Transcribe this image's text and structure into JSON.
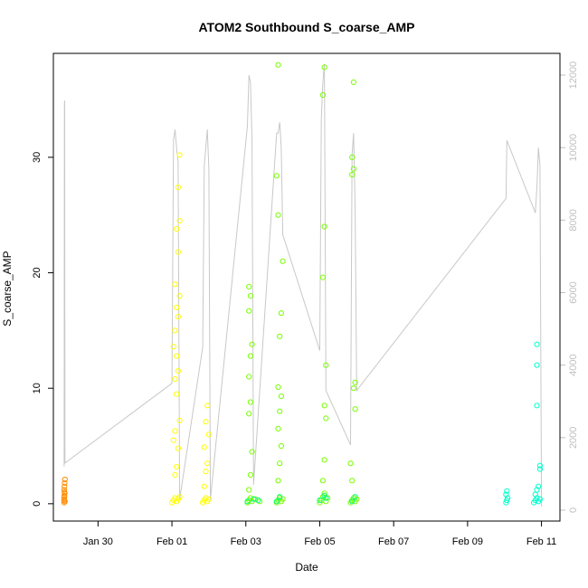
{
  "chart_data": {
    "type": "scatter",
    "title": "ATOM2 Southbound S_coarse_AMP",
    "xlabel": "Date",
    "ylabel": "S_coarse_AMP",
    "xlim": [
      "2024-01-28T19:00",
      "2024-02-11T12:00"
    ],
    "ylim": [
      -1.5,
      39
    ],
    "ylim_right": [
      -300,
      12600
    ],
    "x_ticks": [
      {
        "label": "Jan 30",
        "at": "2024-01-30"
      },
      {
        "label": "Feb 01",
        "at": "2024-02-01"
      },
      {
        "label": "Feb 03",
        "at": "2024-02-03"
      },
      {
        "label": "Feb 05",
        "at": "2024-02-05"
      },
      {
        "label": "Feb 07",
        "at": "2024-02-07"
      },
      {
        "label": "Feb 09",
        "at": "2024-02-09"
      },
      {
        "label": "Feb 11",
        "at": "2024-02-11"
      }
    ],
    "y_ticks": [
      0,
      10,
      20,
      30
    ],
    "y_ticks_right": [
      0,
      2000,
      4000,
      6000,
      8000,
      10000,
      12000
    ],
    "grid": false,
    "legend": "none",
    "series": [
      {
        "color": "#ff8c00",
        "points": [
          [
            "2024-01-29T02:00",
            0.1
          ],
          [
            "2024-01-29T02:00",
            0.3
          ],
          [
            "2024-01-29T02:10",
            0.6
          ],
          [
            "2024-01-29T02:20",
            0.9
          ],
          [
            "2024-01-29T02:00",
            1.2
          ],
          [
            "2024-01-29T02:10",
            1.5
          ],
          [
            "2024-01-29T02:20",
            1.8
          ],
          [
            "2024-01-29T02:30",
            2.1
          ],
          [
            "2024-01-29T02:00",
            0.4
          ],
          [
            "2024-01-29T02:30",
            0.2
          ],
          [
            "2024-01-29T02:15",
            1.0
          ],
          [
            "2024-01-29T02:05",
            0.7
          ]
        ]
      },
      {
        "color": "#ffff00",
        "points": [
          [
            "2024-02-01T00:00",
            0.1
          ],
          [
            "2024-02-01T01:00",
            0.3
          ],
          [
            "2024-02-01T02:00",
            0.5
          ],
          [
            "2024-02-01T03:00",
            0.2
          ],
          [
            "2024-02-01T04:00",
            0.4
          ],
          [
            "2024-02-01T05:00",
            0.6
          ],
          [
            "2024-02-01T02:00",
            2.5
          ],
          [
            "2024-02-01T03:00",
            3.2
          ],
          [
            "2024-02-01T04:00",
            4.8
          ],
          [
            "2024-02-01T01:00",
            5.5
          ],
          [
            "2024-02-01T02:00",
            6.3
          ],
          [
            "2024-02-01T05:00",
            7.2
          ],
          [
            "2024-02-01T03:00",
            9.5
          ],
          [
            "2024-02-01T02:00",
            10.8
          ],
          [
            "2024-02-01T04:00",
            11.5
          ],
          [
            "2024-02-01T03:00",
            12.8
          ],
          [
            "2024-02-01T01:00",
            13.6
          ],
          [
            "2024-02-01T02:00",
            15.0
          ],
          [
            "2024-02-01T04:00",
            16.2
          ],
          [
            "2024-02-01T03:00",
            17.0
          ],
          [
            "2024-02-01T05:00",
            18.0
          ],
          [
            "2024-02-01T02:00",
            19.0
          ],
          [
            "2024-02-01T04:00",
            21.8
          ],
          [
            "2024-02-01T03:00",
            23.8
          ],
          [
            "2024-02-01T05:00",
            24.5
          ],
          [
            "2024-02-01T04:00",
            27.4
          ],
          [
            "2024-02-01T05:00",
            30.2
          ],
          [
            "2024-02-01T20:00",
            0.1
          ],
          [
            "2024-02-01T21:00",
            0.3
          ],
          [
            "2024-02-01T22:00",
            0.5
          ],
          [
            "2024-02-01T23:00",
            0.2
          ],
          [
            "2024-02-02T00:00",
            0.4
          ],
          [
            "2024-02-01T21:00",
            1.5
          ],
          [
            "2024-02-01T22:00",
            2.8
          ],
          [
            "2024-02-01T23:00",
            3.5
          ],
          [
            "2024-02-01T21:00",
            4.9
          ],
          [
            "2024-02-02T00:00",
            6.0
          ],
          [
            "2024-02-01T22:00",
            7.1
          ],
          [
            "2024-02-01T23:00",
            8.5
          ]
        ]
      },
      {
        "color": "#77ff00",
        "points": [
          [
            "2024-02-03T01:00",
            0.1
          ],
          [
            "2024-02-03T02:00",
            0.3
          ],
          [
            "2024-02-03T03:00",
            0.5
          ],
          [
            "2024-02-03T04:00",
            0.2
          ],
          [
            "2024-02-03T06:00",
            0.4
          ],
          [
            "2024-02-03T09:00",
            0.2
          ],
          [
            "2024-02-03T02:00",
            1.2
          ],
          [
            "2024-02-03T03:00",
            2.5
          ],
          [
            "2024-02-03T04:00",
            4.5
          ],
          [
            "2024-02-03T02:00",
            7.8
          ],
          [
            "2024-02-03T03:00",
            8.8
          ],
          [
            "2024-02-03T02:00",
            11.0
          ],
          [
            "2024-02-03T03:00",
            12.8
          ],
          [
            "2024-02-03T04:00",
            13.8
          ],
          [
            "2024-02-03T02:00",
            16.7
          ],
          [
            "2024-02-03T03:00",
            18.0
          ],
          [
            "2024-02-03T02:00",
            18.8
          ],
          [
            "2024-02-03T20:00",
            0.1
          ],
          [
            "2024-02-03T21:00",
            0.3
          ],
          [
            "2024-02-03T22:00",
            0.5
          ],
          [
            "2024-02-03T23:00",
            0.2
          ],
          [
            "2024-02-04T00:00",
            0.4
          ],
          [
            "2024-02-03T21:00",
            2.0
          ],
          [
            "2024-02-03T22:00",
            3.5
          ],
          [
            "2024-02-03T23:00",
            5.0
          ],
          [
            "2024-02-03T21:00",
            6.5
          ],
          [
            "2024-02-03T22:00",
            8.0
          ],
          [
            "2024-02-03T23:00",
            9.3
          ],
          [
            "2024-02-03T21:00",
            10.1
          ],
          [
            "2024-02-03T22:00",
            14.5
          ],
          [
            "2024-02-03T23:00",
            16.5
          ],
          [
            "2024-02-04T00:00",
            21.0
          ],
          [
            "2024-02-03T21:00",
            25.0
          ],
          [
            "2024-02-03T20:00",
            28.4
          ],
          [
            "2024-02-03T21:00",
            38.0
          ],
          [
            "2024-02-05T00:00",
            0.1
          ],
          [
            "2024-02-05T01:00",
            0.3
          ],
          [
            "2024-02-05T02:00",
            0.6
          ],
          [
            "2024-02-05T03:00",
            0.9
          ],
          [
            "2024-02-05T04:00",
            0.2
          ],
          [
            "2024-02-05T05:00",
            0.5
          ],
          [
            "2024-02-05T02:00",
            2.0
          ],
          [
            "2024-02-05T03:00",
            3.8
          ],
          [
            "2024-02-05T04:00",
            7.4
          ],
          [
            "2024-02-05T03:00",
            8.5
          ],
          [
            "2024-02-05T04:00",
            12.0
          ],
          [
            "2024-02-05T02:00",
            19.6
          ],
          [
            "2024-02-05T03:00",
            24.0
          ],
          [
            "2024-02-05T02:00",
            35.4
          ],
          [
            "2024-02-05T03:00",
            37.8
          ],
          [
            "2024-02-05T20:00",
            0.1
          ],
          [
            "2024-02-05T21:00",
            0.3
          ],
          [
            "2024-02-05T22:00",
            0.5
          ],
          [
            "2024-02-05T23:00",
            0.2
          ],
          [
            "2024-02-06T00:00",
            0.4
          ],
          [
            "2024-02-05T21:00",
            2.0
          ],
          [
            "2024-02-05T20:00",
            3.5
          ],
          [
            "2024-02-05T23:00",
            8.2
          ],
          [
            "2024-02-05T22:00",
            10.0
          ],
          [
            "2024-02-05T23:00",
            10.5
          ],
          [
            "2024-02-05T21:00",
            28.5
          ],
          [
            "2024-02-05T22:00",
            29.0
          ],
          [
            "2024-02-05T21:00",
            30.0
          ],
          [
            "2024-02-05T22:00",
            36.5
          ]
        ]
      },
      {
        "color": "#00ff7f",
        "points": [
          [
            "2024-02-03T01:00",
            0.2
          ],
          [
            "2024-02-03T05:00",
            0.4
          ],
          [
            "2024-02-03T08:00",
            0.3
          ],
          [
            "2024-02-03T20:00",
            0.2
          ],
          [
            "2024-02-03T22:00",
            0.6
          ],
          [
            "2024-02-05T00:00",
            0.3
          ],
          [
            "2024-02-05T03:00",
            0.7
          ],
          [
            "2024-02-05T04:00",
            0.5
          ],
          [
            "2024-02-05T21:00",
            0.2
          ],
          [
            "2024-02-05T23:00",
            0.6
          ]
        ]
      },
      {
        "color": "#00ffcc",
        "points": [
          [
            "2024-02-10T01:00",
            0.1
          ],
          [
            "2024-02-10T01:30",
            0.3
          ],
          [
            "2024-02-10T02:00",
            0.5
          ],
          [
            "2024-02-10T01:00",
            0.8
          ],
          [
            "2024-02-10T01:30",
            1.1
          ],
          [
            "2024-02-10T19:00",
            0.1
          ],
          [
            "2024-02-10T20:00",
            0.3
          ],
          [
            "2024-02-10T21:00",
            0.5
          ],
          [
            "2024-02-10T22:00",
            0.2
          ],
          [
            "2024-02-10T23:00",
            0.4
          ],
          [
            "2024-02-10T20:00",
            0.8
          ],
          [
            "2024-02-10T21:00",
            1.2
          ],
          [
            "2024-02-10T22:00",
            1.5
          ],
          [
            "2024-02-10T23:00",
            3.0
          ],
          [
            "2024-02-10T23:00",
            3.3
          ],
          [
            "2024-02-10T21:00",
            8.5
          ],
          [
            "2024-02-10T21:00",
            12.0
          ],
          [
            "2024-02-10T21:00",
            13.8
          ]
        ]
      }
    ],
    "line_series": {
      "axis": "right",
      "color": "#c8c8c8",
      "points": [
        [
          "2024-01-29T02:00",
          1200
        ],
        [
          "2024-01-29T02:10",
          11200
        ],
        [
          "2024-01-29T02:20",
          11300
        ],
        [
          "2024-01-29T02:30",
          1300
        ],
        [
          "2024-02-01T00:00",
          3500
        ],
        [
          "2024-02-01T01:00",
          10200
        ],
        [
          "2024-02-01T02:00",
          10500
        ],
        [
          "2024-02-01T03:00",
          10000
        ],
        [
          "2024-02-01T04:00",
          9600
        ],
        [
          "2024-02-01T05:00",
          300
        ],
        [
          "2024-02-01T20:00",
          4500
        ],
        [
          "2024-02-01T21:00",
          9500
        ],
        [
          "2024-02-01T22:00",
          10000
        ],
        [
          "2024-02-01T23:00",
          10500
        ],
        [
          "2024-02-02T00:00",
          9400
        ],
        [
          "2024-02-02T01:00",
          300
        ],
        [
          "2024-02-03T01:00",
          10600
        ],
        [
          "2024-02-03T02:00",
          12000
        ],
        [
          "2024-02-03T03:00",
          11800
        ],
        [
          "2024-02-03T04:00",
          10200
        ],
        [
          "2024-02-03T05:00",
          700
        ],
        [
          "2024-02-03T20:00",
          10400
        ],
        [
          "2024-02-03T21:00",
          10400
        ],
        [
          "2024-02-03T22:00",
          10700
        ],
        [
          "2024-02-03T23:00",
          10000
        ],
        [
          "2024-02-04T00:00",
          7600
        ],
        [
          "2024-02-05T00:00",
          4400
        ],
        [
          "2024-02-05T01:00",
          10800
        ],
        [
          "2024-02-05T02:00",
          11800
        ],
        [
          "2024-02-05T03:00",
          12300
        ],
        [
          "2024-02-05T04:00",
          3300
        ],
        [
          "2024-02-05T20:00",
          1800
        ],
        [
          "2024-02-05T21:00",
          9800
        ],
        [
          "2024-02-05T22:00",
          10400
        ],
        [
          "2024-02-05T23:00",
          8300
        ],
        [
          "2024-02-06T00:00",
          3300
        ],
        [
          "2024-02-10T01:00",
          8600
        ],
        [
          "2024-02-10T01:30",
          10200
        ],
        [
          "2024-02-10T20:00",
          8200
        ],
        [
          "2024-02-10T21:00",
          8900
        ],
        [
          "2024-02-10T22:00",
          10000
        ],
        [
          "2024-02-10T23:00",
          9500
        ],
        [
          "2024-02-11T00:00",
          100
        ]
      ]
    }
  }
}
